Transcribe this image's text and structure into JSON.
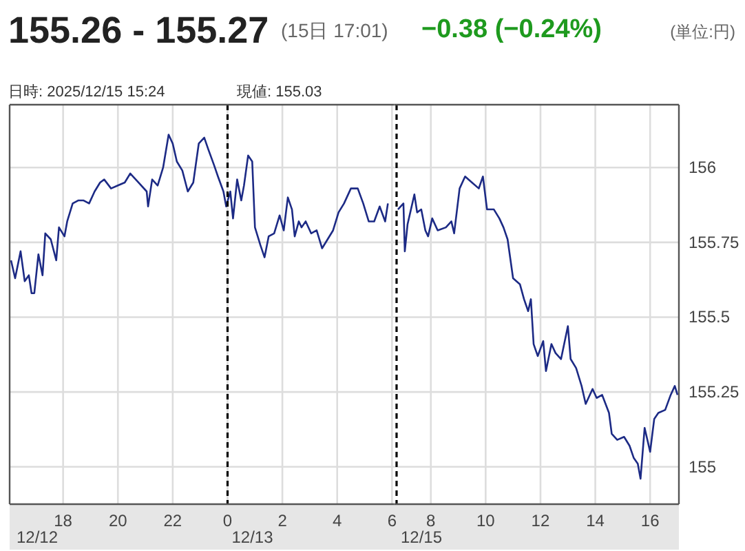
{
  "chart_data": [
    {
      "type": "line",
      "title": "155.26 - 155.27",
      "subtitle": "(15日 17:01)",
      "annotations": [
        "−0.38 (−0.24%)",
        "(単位:円)",
        "日時: 2025/12/15  15:24",
        "現値: 155.03",
        "12/12"
      ],
      "xlim": [
        "2025-12-12T16:03",
        "2025-12-13T06:05"
      ],
      "ylim": [
        154.875,
        156.21
      ],
      "xticks": [
        {
          "value": "2025-12-12T18:00",
          "label": "18"
        },
        {
          "value": "2025-12-12T20:00",
          "label": "20"
        },
        {
          "value": "2025-12-12T22:00",
          "label": "22"
        },
        {
          "value": "2025-12-13T00:00",
          "label": "0"
        },
        {
          "value": "2025-12-13T02:00",
          "label": "2"
        },
        {
          "value": "2025-12-13T04:00",
          "label": "4"
        },
        {
          "value": "2025-12-13T06:00",
          "label": "6"
        }
      ],
      "yticks": [
        155,
        155.25,
        155.5,
        155.75,
        156
      ],
      "tick_labels": "x",
      "grid": true,
      "ref_lines": [
        {
          "axis": "x",
          "value": "2025-12-13T00:00",
          "label": "12/13",
          "color": "#000000",
          "line_style": "dashed"
        }
      ],
      "series": [
        {
          "color": "#1c2a85",
          "x": [
            "2025-12-12T16:06",
            "2025-12-12T16:15",
            "2025-12-12T16:27",
            "2025-12-12T16:36",
            "2025-12-12T16:45",
            "2025-12-12T16:51",
            "2025-12-12T16:57",
            "2025-12-12T17:06",
            "2025-12-12T17:15",
            "2025-12-12T17:21",
            "2025-12-12T17:33",
            "2025-12-12T17:45",
            "2025-12-12T17:51",
            "2025-12-12T18:03",
            "2025-12-12T18:09",
            "2025-12-12T18:21",
            "2025-12-12T18:33",
            "2025-12-12T18:45",
            "2025-12-12T18:57",
            "2025-12-12T19:09",
            "2025-12-12T19:21",
            "2025-12-12T19:30",
            "2025-12-12T19:45",
            "2025-12-12T20:00",
            "2025-12-12T20:15",
            "2025-12-12T20:27",
            "2025-12-12T20:45",
            "2025-12-12T21:03",
            "2025-12-12T21:06",
            "2025-12-12T21:15",
            "2025-12-12T21:27",
            "2025-12-12T21:39",
            "2025-12-12T21:51",
            "2025-12-12T22:00",
            "2025-12-12T22:09",
            "2025-12-12T22:21",
            "2025-12-12T22:33",
            "2025-12-12T22:45",
            "2025-12-12T22:57",
            "2025-12-12T23:09",
            "2025-12-12T23:18",
            "2025-12-12T23:30",
            "2025-12-12T23:39",
            "2025-12-12T23:51",
            "2025-12-12T23:57",
            "2025-12-13T00:06",
            "2025-12-13T00:12",
            "2025-12-13T00:21",
            "2025-12-13T00:30",
            "2025-12-13T00:36",
            "2025-12-13T00:45",
            "2025-12-13T00:54",
            "2025-12-13T01:00",
            "2025-12-13T01:12",
            "2025-12-13T01:21",
            "2025-12-13T01:30",
            "2025-12-13T01:42",
            "2025-12-13T01:54",
            "2025-12-13T02:03",
            "2025-12-13T02:12",
            "2025-12-13T02:21",
            "2025-12-13T02:27",
            "2025-12-13T02:36",
            "2025-12-13T02:42",
            "2025-12-13T02:51",
            "2025-12-13T03:03",
            "2025-12-13T03:15",
            "2025-12-13T03:27",
            "2025-12-13T03:39",
            "2025-12-13T03:51",
            "2025-12-13T04:03",
            "2025-12-13T04:15",
            "2025-12-13T04:30",
            "2025-12-13T04:45",
            "2025-12-13T04:57",
            "2025-12-13T05:09",
            "2025-12-13T05:21",
            "2025-12-13T05:33",
            "2025-12-13T05:45",
            "2025-12-13T05:51"
          ],
          "values": [
            155.69,
            155.63,
            155.72,
            155.62,
            155.64,
            155.58,
            155.58,
            155.71,
            155.64,
            155.78,
            155.76,
            155.69,
            155.8,
            155.77,
            155.82,
            155.88,
            155.89,
            155.89,
            155.88,
            155.92,
            155.95,
            155.96,
            155.93,
            155.94,
            155.95,
            155.98,
            155.95,
            155.92,
            155.87,
            155.96,
            155.94,
            156.0,
            156.11,
            156.08,
            156.02,
            155.99,
            155.92,
            155.95,
            156.08,
            156.1,
            156.06,
            156.01,
            155.97,
            155.92,
            155.87,
            155.92,
            155.83,
            155.96,
            155.89,
            155.94,
            156.04,
            156.02,
            155.8,
            155.74,
            155.7,
            155.77,
            155.78,
            155.84,
            155.79,
            155.9,
            155.86,
            155.77,
            155.82,
            155.8,
            155.82,
            155.78,
            155.79,
            155.73,
            155.76,
            155.79,
            155.85,
            155.88,
            155.93,
            155.93,
            155.88,
            155.82,
            155.82,
            155.87,
            155.82,
            155.88
          ]
        }
      ]
    },
    {
      "type": "line",
      "xlim": [
        "2025-12-15T06:40",
        "2025-12-15T17:03"
      ],
      "ylim": [
        154.875,
        156.21
      ],
      "xticks": [
        {
          "value": "2025-12-15T08:00",
          "label": "8"
        },
        {
          "value": "2025-12-15T10:00",
          "label": "10"
        },
        {
          "value": "2025-12-15T12:00",
          "label": "12"
        },
        {
          "value": "2025-12-15T14:00",
          "label": "14"
        },
        {
          "value": "2025-12-15T16:00",
          "label": "16"
        }
      ],
      "yticks": [
        155,
        155.25,
        155.5,
        155.75,
        156
      ],
      "grid": true,
      "ref_lines": [
        {
          "axis": "x",
          "value": "2025-12-15T06:45",
          "label": "12/15",
          "color": "#000000",
          "line_style": "dashed"
        }
      ],
      "series": [
        {
          "color": "#1c2a85",
          "x": [
            "2025-12-15T06:48",
            "2025-12-15T07:00",
            "2025-12-15T07:03",
            "2025-12-15T07:09",
            "2025-12-15T07:24",
            "2025-12-15T07:30",
            "2025-12-15T07:39",
            "2025-12-15T07:48",
            "2025-12-15T07:54",
            "2025-12-15T08:03",
            "2025-12-15T08:15",
            "2025-12-15T08:33",
            "2025-12-15T08:45",
            "2025-12-15T08:51",
            "2025-12-15T09:03",
            "2025-12-15T09:15",
            "2025-12-15T09:30",
            "2025-12-15T09:45",
            "2025-12-15T09:54",
            "2025-12-15T10:03",
            "2025-12-15T10:18",
            "2025-12-15T10:30",
            "2025-12-15T10:39",
            "2025-12-15T10:48",
            "2025-12-15T11:00",
            "2025-12-15T11:15",
            "2025-12-15T11:24",
            "2025-12-15T11:33",
            "2025-12-15T11:39",
            "2025-12-15T11:45",
            "2025-12-15T11:54",
            "2025-12-15T12:06",
            "2025-12-15T12:12",
            "2025-12-15T12:24",
            "2025-12-15T12:33",
            "2025-12-15T12:45",
            "2025-12-15T13:00",
            "2025-12-15T13:06",
            "2025-12-15T13:18",
            "2025-12-15T13:30",
            "2025-12-15T13:39",
            "2025-12-15T13:54",
            "2025-12-15T14:03",
            "2025-12-15T14:15",
            "2025-12-15T14:30",
            "2025-12-15T14:36",
            "2025-12-15T14:48",
            "2025-12-15T15:03",
            "2025-12-15T15:15",
            "2025-12-15T15:24",
            "2025-12-15T15:33",
            "2025-12-15T15:39",
            "2025-12-15T15:48",
            "2025-12-15T16:00",
            "2025-12-15T16:09",
            "2025-12-15T16:18",
            "2025-12-15T16:33",
            "2025-12-15T16:45",
            "2025-12-15T16:54",
            "2025-12-15T17:00"
          ],
          "values": [
            155.86,
            155.88,
            155.72,
            155.81,
            155.91,
            155.85,
            155.86,
            155.79,
            155.77,
            155.83,
            155.79,
            155.8,
            155.82,
            155.78,
            155.93,
            155.97,
            155.95,
            155.93,
            155.97,
            155.86,
            155.86,
            155.83,
            155.8,
            155.76,
            155.63,
            155.61,
            155.56,
            155.52,
            155.56,
            155.41,
            155.37,
            155.42,
            155.32,
            155.41,
            155.38,
            155.36,
            155.47,
            155.36,
            155.33,
            155.27,
            155.21,
            155.26,
            155.23,
            155.24,
            155.18,
            155.11,
            155.09,
            155.1,
            155.07,
            155.03,
            155.01,
            154.96,
            155.13,
            155.05,
            155.16,
            155.18,
            155.19,
            155.24,
            155.27,
            155.24
          ]
        }
      ]
    }
  ]
}
